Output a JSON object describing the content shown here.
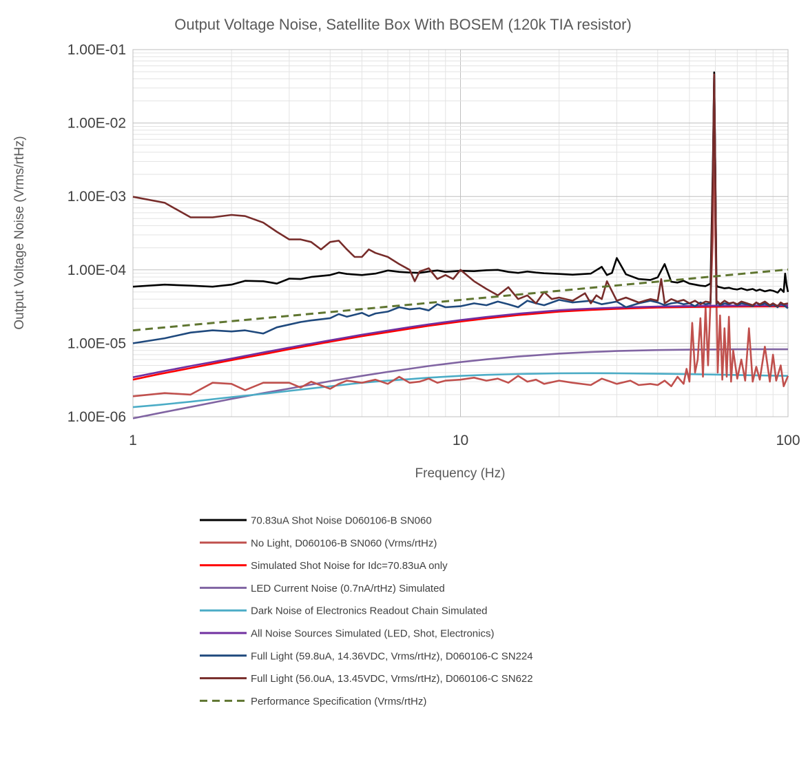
{
  "chart_data": {
    "type": "line",
    "title": "Output Voltage Noise, Satellite Box With BOSEM (120k TIA resistor)",
    "xlabel": "Frequency (Hz)",
    "ylabel": "Output Voltage Noise (Vrms/rtHz)",
    "xscale": "log",
    "yscale": "log",
    "xlim": [
      1,
      100
    ],
    "ylim": [
      1e-06,
      0.1
    ],
    "x_tick_labels": [
      "1",
      "10",
      "100"
    ],
    "y_tick_labels": [
      "1.00E-06",
      "1.00E-05",
      "1.00E-04",
      "1.00E-03",
      "1.00E-02",
      "1.00E-01"
    ],
    "grid": true,
    "legend_position": "bottom",
    "series": [
      {
        "name": "70.83uA Shot Noise D060106-B SN060",
        "color": "#000000",
        "x": [
          1,
          1.25,
          1.5,
          1.75,
          2,
          2.2,
          2.5,
          2.75,
          3,
          3.25,
          3.5,
          4,
          4.25,
          4.5,
          5,
          5.5,
          6,
          6.5,
          7,
          7.5,
          8,
          8.5,
          9,
          10,
          11,
          12,
          13,
          14,
          15,
          16,
          17,
          18,
          20,
          22,
          25,
          27,
          28,
          29,
          30,
          32,
          35,
          38,
          40,
          42,
          44,
          46,
          48,
          50,
          52,
          54,
          56,
          58,
          59,
          59.5,
          60,
          60.5,
          61,
          62,
          64,
          66,
          68,
          70,
          72,
          75,
          78,
          80,
          82,
          85,
          88,
          90,
          93,
          95,
          97,
          98,
          99,
          100
        ],
        "y": [
          5.9e-05,
          6.3e-05,
          6.1e-05,
          5.9e-05,
          6.3e-05,
          7.1e-05,
          7e-05,
          6.5e-05,
          7.6e-05,
          7.5e-05,
          8e-05,
          8.5e-05,
          9.2e-05,
          8.8e-05,
          8.5e-05,
          8.9e-05,
          9.8e-05,
          9.4e-05,
          9.2e-05,
          9.1e-05,
          9.5e-05,
          9.8e-05,
          9.4e-05,
          9.7e-05,
          9.6e-05,
          9.9e-05,
          0.0001,
          9.4e-05,
          9.1e-05,
          9.5e-05,
          9.2e-05,
          9e-05,
          8.8e-05,
          8.6e-05,
          8.9e-05,
          0.00011,
          8.5e-05,
          9.1e-05,
          0.000145,
          8.7e-05,
          7.5e-05,
          7.3e-05,
          7.9e-05,
          0.00012,
          6.9e-05,
          6.7e-05,
          7.1e-05,
          6.5e-05,
          6.3e-05,
          6.1e-05,
          6e-05,
          6.5e-05,
          0.003,
          0.049,
          0.002,
          6.2e-05,
          5.9e-05,
          5.8e-05,
          5.6e-05,
          5.7e-05,
          5.5e-05,
          5.4e-05,
          5.6e-05,
          5.3e-05,
          5.5e-05,
          5.2e-05,
          5.4e-05,
          5.1e-05,
          5.3e-05,
          5.2e-05,
          4.9e-05,
          5.5e-05,
          5e-05,
          8.9e-05,
          6.2e-05,
          5e-05
        ]
      },
      {
        "name": "No Light, D060106-B SN060 (Vrms/rtHz)",
        "color": "#c0504d",
        "x": [
          1,
          1.25,
          1.5,
          1.75,
          2,
          2.2,
          2.5,
          2.75,
          3,
          3.25,
          3.5,
          4,
          4.25,
          4.5,
          5,
          5.5,
          6,
          6.5,
          7,
          7.5,
          8,
          8.5,
          9,
          10,
          11,
          12,
          13,
          14,
          15,
          16,
          17,
          18,
          20,
          22,
          25,
          27,
          30,
          33,
          35,
          38,
          40,
          42,
          44,
          46,
          48,
          49,
          50,
          51,
          52,
          53,
          54,
          55,
          56,
          57,
          58,
          59,
          59.5,
          60,
          60.5,
          61,
          62,
          63,
          64,
          65,
          66,
          67,
          68,
          70,
          72,
          74,
          76,
          78,
          80,
          82,
          85,
          88,
          90,
          92,
          95,
          97,
          100
        ],
        "y": [
          1.9e-06,
          2.1e-06,
          2e-06,
          2.9e-06,
          2.8e-06,
          2.3e-06,
          2.9e-06,
          2.9e-06,
          2.9e-06,
          2.5e-06,
          3e-06,
          2.4e-06,
          2.8e-06,
          3.1e-06,
          2.9e-06,
          3.2e-06,
          2.8e-06,
          3.5e-06,
          2.9e-06,
          3e-06,
          3.3e-06,
          2.9e-06,
          3.1e-06,
          3.2e-06,
          3.4e-06,
          3.1e-06,
          3.3e-06,
          2.9e-06,
          3.6e-06,
          3e-06,
          3.2e-06,
          2.8e-06,
          3.1e-06,
          2.9e-06,
          2.7e-06,
          3.3e-06,
          2.8e-06,
          3.1e-06,
          2.7e-06,
          2.8e-06,
          2.7e-06,
          3.1e-06,
          2.6e-06,
          3.5e-06,
          2.8e-06,
          4.5e-06,
          3e-06,
          1.9e-05,
          4e-06,
          6e-06,
          2.2e-05,
          3.5e-06,
          3.1e-05,
          5e-06,
          3.8e-05,
          0.0003,
          0.04,
          0.0003,
          3.5e-05,
          4e-06,
          2.4e-05,
          3.2e-06,
          1.6e-05,
          3.5e-06,
          2.3e-05,
          3e-06,
          8e-06,
          3.3e-06,
          6e-06,
          3.1e-06,
          1.6e-05,
          3e-06,
          4.8e-06,
          3.2e-06,
          9e-06,
          3e-06,
          7e-06,
          3.1e-06,
          5e-06,
          2.6e-06,
          3.6e-06
        ]
      },
      {
        "name": "Simulated Shot Noise for Idc=70.83uA only",
        "color": "#ff0000",
        "x": [
          1,
          1.2,
          1.5,
          2,
          2.5,
          3,
          4,
          5,
          6,
          7,
          8,
          10,
          12,
          15,
          20,
          25,
          30,
          40,
          50,
          60,
          70,
          80,
          100
        ],
        "y": [
          3.2e-06,
          3.8e-06,
          4.6e-06,
          5.9e-06,
          7.1e-06,
          8.3e-06,
          1.05e-05,
          1.25e-05,
          1.42e-05,
          1.58e-05,
          1.73e-05,
          1.98e-05,
          2.18e-05,
          2.42e-05,
          2.7e-05,
          2.85e-05,
          2.95e-05,
          3.07e-05,
          3.12e-05,
          3.15e-05,
          3.16e-05,
          3.17e-05,
          3.18e-05
        ]
      },
      {
        "name": "LED Current Noise (0.7nA/rtHz) Simulated",
        "color": "#8064a2",
        "x": [
          1,
          1.2,
          1.5,
          2,
          2.5,
          3,
          4,
          5,
          6,
          7,
          8,
          10,
          12,
          15,
          20,
          25,
          30,
          40,
          50,
          60,
          70,
          80,
          100
        ],
        "y": [
          9.5e-07,
          1.12e-06,
          1.36e-06,
          1.75e-06,
          2.1e-06,
          2.42e-06,
          3.05e-06,
          3.6e-06,
          4.08e-06,
          4.5e-06,
          4.9e-06,
          5.55e-06,
          6.05e-06,
          6.6e-06,
          7.25e-06,
          7.6e-06,
          7.85e-06,
          8.1e-06,
          8.2e-06,
          8.25e-06,
          8.28e-06,
          8.3e-06,
          8.3e-06
        ]
      },
      {
        "name": "Dark Noise of Electronics Readout Chain Simulated",
        "color": "#4bacc6",
        "x": [
          1,
          1.2,
          1.5,
          2,
          2.5,
          3,
          4,
          5,
          6,
          7,
          8,
          10,
          12,
          15,
          20,
          25,
          30,
          40,
          50,
          60,
          70,
          80,
          100
        ],
        "y": [
          1.35e-06,
          1.45e-06,
          1.6e-06,
          1.85e-06,
          2.05e-06,
          2.25e-06,
          2.6e-06,
          2.9e-06,
          3.1e-06,
          3.25e-06,
          3.4e-06,
          3.6e-06,
          3.72e-06,
          3.82e-06,
          3.9e-06,
          3.92e-06,
          3.9e-06,
          3.85e-06,
          3.8e-06,
          3.75e-06,
          3.7e-06,
          3.66e-06,
          3.6e-06
        ]
      },
      {
        "name": "All Noise Sources Simulated (LED, Shot, Electronics)",
        "color": "#7030a0",
        "x": [
          1,
          1.2,
          1.5,
          2,
          2.5,
          3,
          4,
          5,
          6,
          7,
          8,
          10,
          12,
          15,
          20,
          25,
          30,
          40,
          50,
          60,
          70,
          80,
          100
        ],
        "y": [
          3.45e-06,
          4.05e-06,
          4.9e-06,
          6.2e-06,
          7.5e-06,
          8.75e-06,
          1.1e-05,
          1.31e-05,
          1.49e-05,
          1.66e-05,
          1.81e-05,
          2.07e-05,
          2.28e-05,
          2.53e-05,
          2.82e-05,
          2.97e-05,
          3.06e-05,
          3.17e-05,
          3.22e-05,
          3.25e-05,
          3.26e-05,
          3.27e-05,
          3.28e-05
        ]
      },
      {
        "name": "Full Light (59.8uA, 14.36VDC, Vrms/rtHz), D060106-C SN224",
        "color": "#1f497d",
        "x": [
          1,
          1.25,
          1.5,
          1.75,
          2,
          2.2,
          2.5,
          2.75,
          3,
          3.25,
          3.5,
          4,
          4.25,
          4.5,
          5,
          5.25,
          5.5,
          6,
          6.5,
          7,
          7.5,
          8,
          8.5,
          9,
          10,
          11,
          12,
          13,
          14,
          15,
          16,
          17,
          18,
          20,
          22,
          25,
          27,
          30,
          32,
          35,
          38,
          40,
          42,
          44,
          46,
          48,
          50,
          52,
          54,
          56,
          58,
          59,
          59.5,
          60,
          60.5,
          61,
          62,
          64,
          66,
          68,
          70,
          72,
          75,
          78,
          80,
          82,
          85,
          88,
          90,
          93,
          95,
          97,
          100
        ],
        "y": [
          1e-05,
          1.17e-05,
          1.4e-05,
          1.5e-05,
          1.45e-05,
          1.5e-05,
          1.36e-05,
          1.65e-05,
          1.8e-05,
          1.95e-05,
          2.05e-05,
          2.2e-05,
          2.5e-05,
          2.3e-05,
          2.6e-05,
          2.35e-05,
          2.55e-05,
          2.7e-05,
          3.1e-05,
          2.9e-05,
          3e-05,
          2.8e-05,
          3.4e-05,
          3.1e-05,
          3.2e-05,
          3.5e-05,
          3.3e-05,
          3.7e-05,
          3.4e-05,
          3.1e-05,
          3.8e-05,
          3.5e-05,
          3.3e-05,
          3.9e-05,
          3.6e-05,
          3.8e-05,
          3.4e-05,
          3.7e-05,
          3.1e-05,
          3.5e-05,
          3.8e-05,
          3.6e-05,
          3.3e-05,
          3.5e-05,
          3.6e-05,
          3.4e-05,
          3.5e-05,
          3.2e-05,
          3.6e-05,
          3.4e-05,
          3.5e-05,
          0.0025,
          0.048,
          0.0025,
          3.4e-05,
          3.6e-05,
          3.3e-05,
          3.5e-05,
          3.4e-05,
          3.6e-05,
          3.3e-05,
          3.5e-05,
          3.4e-05,
          3.2e-05,
          3.6e-05,
          3.3e-05,
          3.5e-05,
          3.2e-05,
          3.4e-05,
          3.1e-05,
          3.5e-05,
          3.3e-05,
          3e-05
        ]
      },
      {
        "name": "Full Light (56.0uA, 13.45VDC, Vrms/rtHz), D060106-C SN622",
        "color": "#772c2a",
        "x": [
          1,
          1.25,
          1.5,
          1.75,
          2,
          2.2,
          2.5,
          2.75,
          3,
          3.25,
          3.5,
          3.75,
          4,
          4.25,
          4.5,
          4.75,
          5,
          5.25,
          5.5,
          6,
          6.5,
          7,
          7.25,
          7.5,
          8,
          8.5,
          9,
          9.5,
          10,
          11,
          12,
          13,
          14,
          15,
          16,
          17,
          18,
          19,
          20,
          22,
          24,
          25,
          26,
          27,
          28,
          30,
          32,
          35,
          38,
          40,
          41,
          42,
          44,
          46,
          48,
          50,
          52,
          54,
          56,
          58,
          59,
          59.5,
          60,
          60.5,
          61,
          62,
          64,
          66,
          68,
          70,
          72,
          75,
          78,
          80,
          82,
          85,
          88,
          90,
          93,
          95,
          97,
          100
        ],
        "y": [
          0.00099,
          0.00082,
          0.00052,
          0.00052,
          0.00056,
          0.00054,
          0.00044,
          0.00033,
          0.00026,
          0.00026,
          0.00024,
          0.00019,
          0.00024,
          0.00025,
          0.00019,
          0.00015,
          0.00015,
          0.00019,
          0.00017,
          0.00015,
          0.00012,
          0.0001,
          7e-05,
          9.5e-05,
          0.000105,
          7.5e-05,
          8.5e-05,
          7.5e-05,
          0.0001,
          7e-05,
          5.5e-05,
          4.5e-05,
          5.8e-05,
          4e-05,
          4.5e-05,
          3.5e-05,
          5e-05,
          4e-05,
          4.2e-05,
          3.8e-05,
          4.8e-05,
          3.5e-05,
          4.5e-05,
          4e-05,
          7e-05,
          3.8e-05,
          4.2e-05,
          3.6e-05,
          4e-05,
          3.8e-05,
          7.5e-05,
          3.5e-05,
          4e-05,
          3.7e-05,
          3.9e-05,
          3.5e-05,
          3.8e-05,
          3.4e-05,
          3.7e-05,
          3.6e-05,
          0.002,
          0.046,
          0.002,
          3.5e-05,
          3.7e-05,
          3.4e-05,
          3.8e-05,
          3.5e-05,
          3.6e-05,
          3.4e-05,
          3.7e-05,
          3.5e-05,
          3.3e-05,
          3.6e-05,
          3.4e-05,
          3.7e-05,
          3.3e-05,
          3.5e-05,
          3.2e-05,
          3.6e-05,
          3.4e-05,
          3.5e-05
        ]
      },
      {
        "name": "Performance Specification (Vrms/rtHz)",
        "color": "#5f7530",
        "dashed": true,
        "x": [
          1,
          100
        ],
        "y": [
          1.5e-05,
          0.000101
        ]
      }
    ]
  }
}
